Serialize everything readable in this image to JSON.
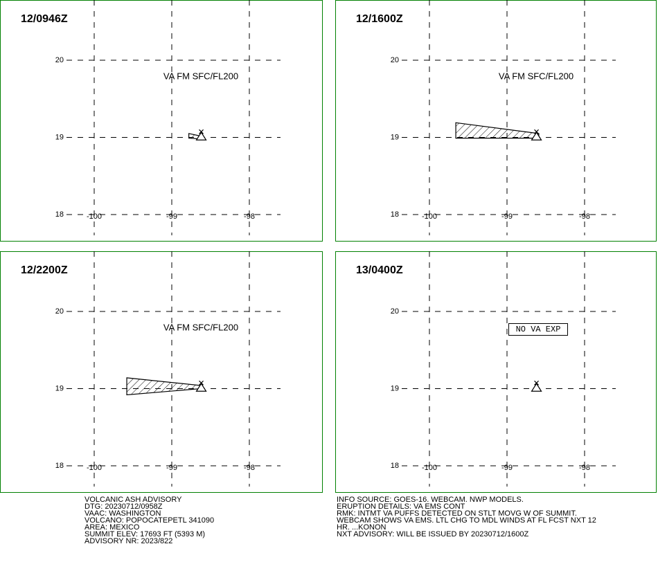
{
  "panels": [
    {
      "time": "12/0946Z",
      "note": "VA FM SFC/FL200",
      "lat_ticks": [
        20,
        19,
        18
      ],
      "lon_ticks": [
        -100,
        -99,
        -98
      ],
      "volcano": [
        -98.62,
        19.02
      ],
      "ash_area": [
        [
          -98.78,
          19.05
        ],
        [
          -98.64,
          19.02
        ],
        [
          -98.64,
          18.98
        ],
        [
          -98.78,
          18.99
        ]
      ]
    },
    {
      "time": "12/1600Z",
      "note": "VA FM SFC/FL200",
      "lat_ticks": [
        20,
        19,
        18
      ],
      "lon_ticks": [
        -100,
        -99,
        -98
      ],
      "volcano": [
        -98.62,
        19.02
      ],
      "ash_area": [
        [
          -99.66,
          19.19
        ],
        [
          -98.59,
          19.05
        ],
        [
          -98.59,
          18.99
        ],
        [
          -99.66,
          18.99
        ]
      ]
    },
    {
      "time": "12/2200Z",
      "note": "VA FM SFC/FL200",
      "lat_ticks": [
        20,
        19,
        18
      ],
      "lon_ticks": [
        -100,
        -99,
        -98
      ],
      "volcano": [
        -98.62,
        19.02
      ],
      "ash_area": [
        [
          -99.58,
          19.14
        ],
        [
          -98.62,
          19.04
        ],
        [
          -98.62,
          19.0
        ],
        [
          -99.58,
          18.92
        ]
      ]
    },
    {
      "time": "13/0400Z",
      "note": "NO VA EXP",
      "lat_ticks": [
        20,
        19,
        18
      ],
      "lon_ticks": [
        -100,
        -99,
        -98
      ],
      "volcano": [
        -98.62,
        19.02
      ]
    }
  ],
  "advisory_left": [
    "VOLCANIC ASH ADVISORY",
    "DTG: 20230712/0958Z",
    "VAAC: WASHINGTON",
    "VOLCANO: POPOCATEPETL 341090",
    "AREA: MEXICO",
    "SUMMIT ELEV: 17693 FT (5393 M)",
    "ADVISORY NR: 2023/822"
  ],
  "advisory_right": [
    "INFO SOURCE: GOES-16. WEBCAM. NWP MODELS.",
    "ERUPTION DETAILS: VA EMS CONT",
    "RMK: INTMT VA PUFFS DETECTED ON STLT MOVG W OF SUMMIT.",
    "WEBCAM SHOWS VA EMS. LTL CHG TO MDL WINDS AT FL FCST NXT 12",
    "HR. ...KONON",
    "NXT ADVISORY: WILL BE ISSUED BY 20230712/1600Z"
  ]
}
